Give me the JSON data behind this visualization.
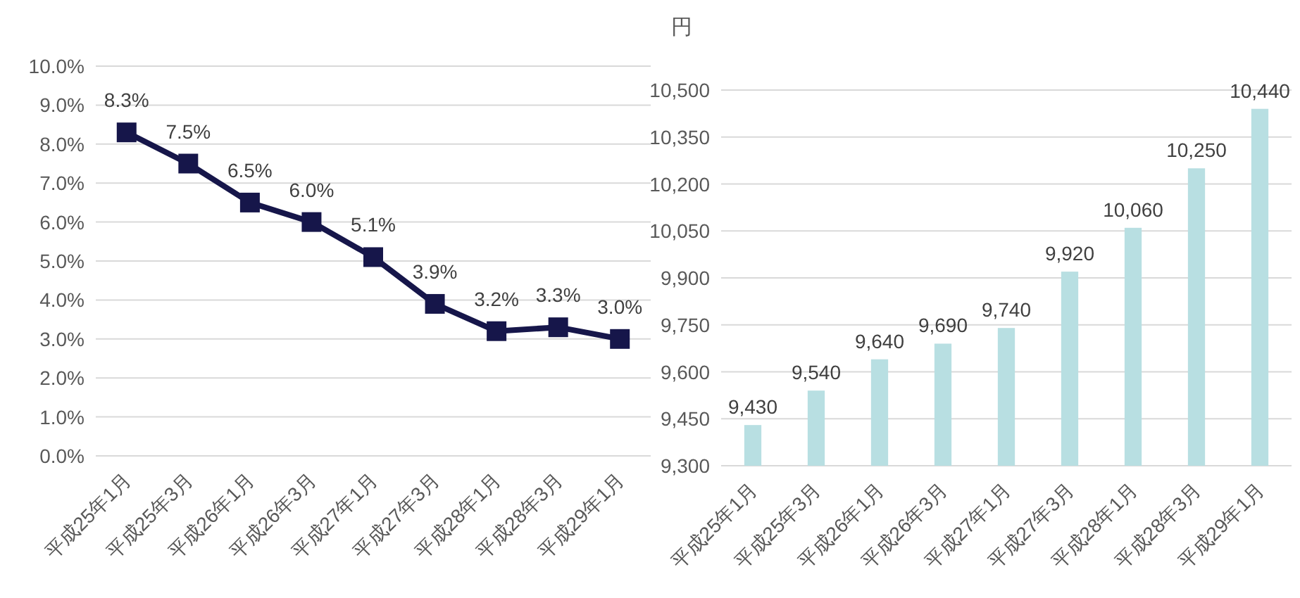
{
  "chart_data": [
    {
      "type": "line",
      "categories": [
        "平成25年1月",
        "平成25年3月",
        "平成26年1月",
        "平成26年3月",
        "平成27年1月",
        "平成27年3月",
        "平成28年1月",
        "平成28年3月",
        "平成29年1月"
      ],
      "series": [
        {
          "color": "#16164a",
          "values": [
            8.3,
            7.5,
            6.5,
            6.0,
            5.1,
            3.9,
            3.2,
            3.3,
            3.0
          ]
        }
      ],
      "value_labels": [
        "8.3%",
        "7.5%",
        "6.5%",
        "6.0%",
        "5.1%",
        "3.9%",
        "3.2%",
        "3.3%",
        "3.0%"
      ],
      "ylim": [
        0,
        10
      ],
      "yticks": [
        {
          "value": 0,
          "label": "0.0%"
        },
        {
          "value": 1,
          "label": "1.0%"
        },
        {
          "value": 2,
          "label": "2.0%"
        },
        {
          "value": 3,
          "label": "3.0%"
        },
        {
          "value": 4,
          "label": "4.0%"
        },
        {
          "value": 5,
          "label": "5.0%"
        },
        {
          "value": 6,
          "label": "6.0%"
        },
        {
          "value": 7,
          "label": "7.0%"
        },
        {
          "value": 8,
          "label": "8.0%"
        },
        {
          "value": 9,
          "label": "9.0%"
        },
        {
          "value": 10,
          "label": "10.0%"
        }
      ],
      "grid": "y",
      "marker": "square",
      "line_style": "solid"
    },
    {
      "type": "bar",
      "ylabel": "円",
      "categories": [
        "平成25年1月",
        "平成25年3月",
        "平成26年1月",
        "平成26年3月",
        "平成27年1月",
        "平成27年3月",
        "平成28年1月",
        "平成28年3月",
        "平成29年1月"
      ],
      "series": [
        {
          "color": "#b8dfe2",
          "values": [
            9430,
            9540,
            9640,
            9690,
            9740,
            9920,
            10060,
            10250,
            10440
          ]
        }
      ],
      "value_labels": [
        "9,430",
        "9,540",
        "9,640",
        "9,690",
        "9,740",
        "9,920",
        "10,060",
        "10,250",
        "10,440"
      ],
      "ylim": [
        9300,
        10500
      ],
      "yticks": [
        {
          "value": 9300,
          "label": "9,300"
        },
        {
          "value": 9450,
          "label": "9,450"
        },
        {
          "value": 9600,
          "label": "9,600"
        },
        {
          "value": 9750,
          "label": "9,750"
        },
        {
          "value": 9900,
          "label": "9,900"
        },
        {
          "value": 10050,
          "label": "10,050"
        },
        {
          "value": 10200,
          "label": "10,200"
        },
        {
          "value": 10350,
          "label": "10,350"
        },
        {
          "value": 10500,
          "label": "10,500"
        }
      ],
      "grid": "y"
    }
  ]
}
